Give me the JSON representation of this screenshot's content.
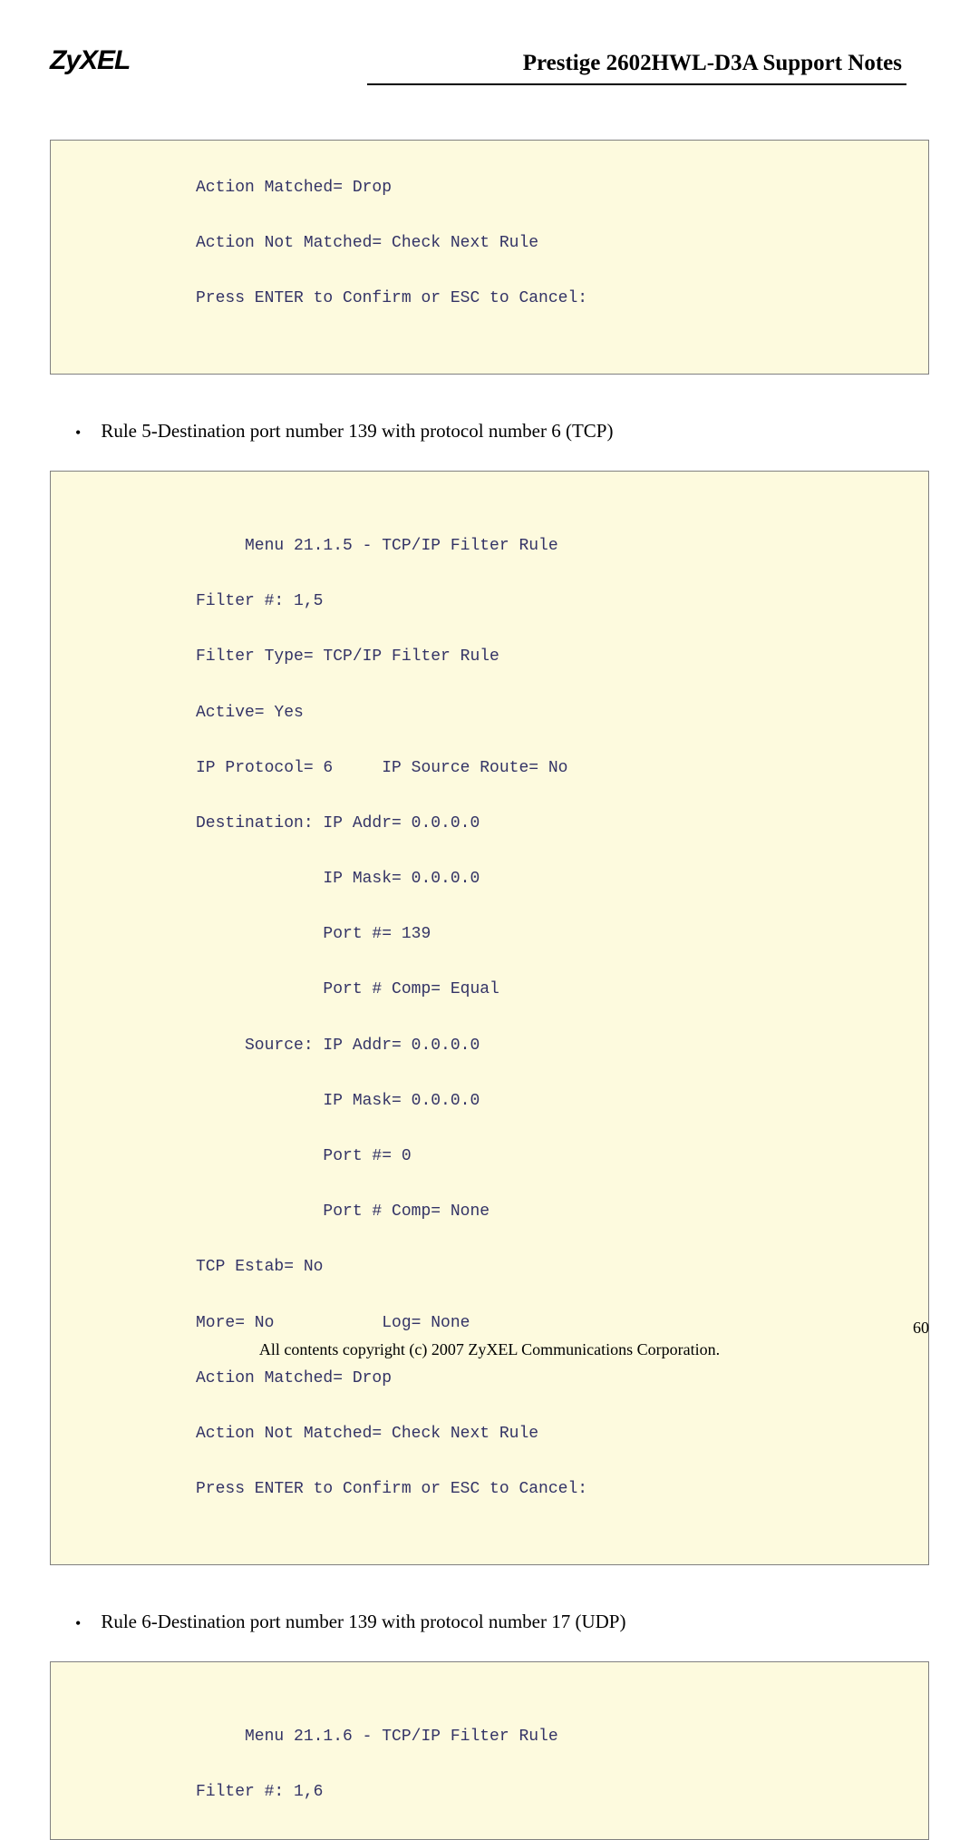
{
  "header": {
    "logo": "ZyXEL",
    "title": "Prestige 2602HWL-D3A Support Notes"
  },
  "box1": {
    "lines": [
      "Action Matched= Drop",
      "Action Not Matched= Check Next Rule",
      "Press ENTER to Confirm or ESC to Cancel:",
      ""
    ]
  },
  "bullet1": "Rule 5-Destination port number 139 with protocol number 6 (TCP)",
  "box2": {
    "lines": [
      "",
      "     Menu 21.1.5 - TCP/IP Filter Rule",
      "Filter #: 1,5",
      "Filter Type= TCP/IP Filter Rule",
      "Active= Yes",
      "IP Protocol= 6     IP Source Route= No",
      "Destination: IP Addr= 0.0.0.0",
      "             IP Mask= 0.0.0.0",
      "             Port #= 139",
      "             Port # Comp= Equal",
      "     Source: IP Addr= 0.0.0.0",
      "             IP Mask= 0.0.0.0",
      "             Port #= 0",
      "             Port # Comp= None",
      "TCP Estab= No",
      "More= No           Log= None",
      "Action Matched= Drop",
      "Action Not Matched= Check Next Rule",
      "Press ENTER to Confirm or ESC to Cancel:",
      ""
    ]
  },
  "bullet2": "Rule 6-Destination port number 139 with protocol number 17 (UDP)",
  "box3": {
    "lines": [
      "",
      "     Menu 21.1.6 - TCP/IP Filter Rule",
      "Filter #: 1,6"
    ]
  },
  "footer": {
    "pageNumber": "60",
    "copyright": "All contents copyright (c) 2007 ZyXEL Communications Corporation."
  },
  "colors": {
    "codeBoxBg": "#fdfade",
    "codeBoxBorder": "#808080",
    "codeText": "#333366",
    "bodyText": "#000000"
  }
}
